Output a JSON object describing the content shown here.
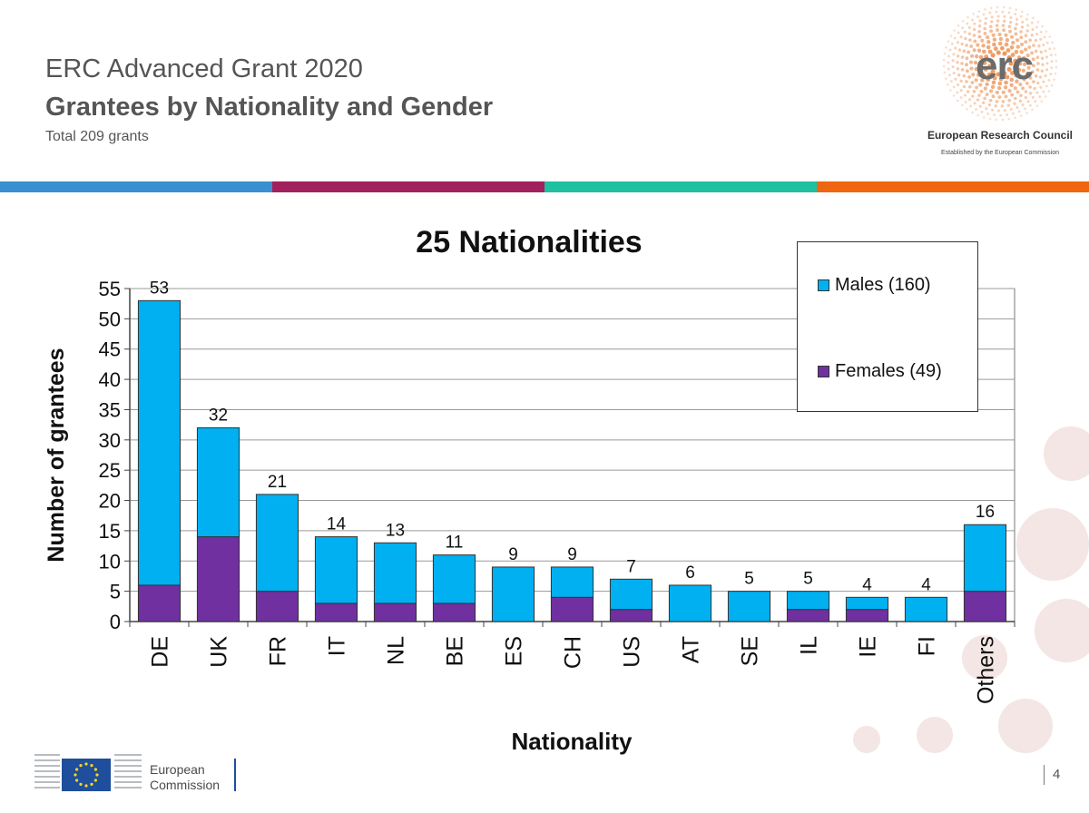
{
  "header": {
    "title": "ERC Advanced Grant 2020",
    "subtitle": "Grantees by Nationality and Gender",
    "note": "Total 209 grants"
  },
  "erc_logo": {
    "word": "erc",
    "name": "European Research Council",
    "tagline": "Established by the European Commission"
  },
  "stripe_colors": [
    "#3a8fd0",
    "#a3205e",
    "#1ec0a0",
    "#f0650f"
  ],
  "chart_data": {
    "type": "bar",
    "stacked": true,
    "title": "25 Nationalities",
    "xlabel": "Nationality",
    "ylabel": "Number of grantees",
    "ylim": [
      0,
      55
    ],
    "yticks": [
      0,
      5,
      10,
      15,
      20,
      25,
      30,
      35,
      40,
      45,
      50,
      55
    ],
    "grid": true,
    "legend_position": "top-right",
    "categories": [
      "DE",
      "UK",
      "FR",
      "IT",
      "NL",
      "BE",
      "ES",
      "CH",
      "US",
      "AT",
      "SE",
      "IL",
      "IE",
      "FI",
      "Others"
    ],
    "totals": [
      53,
      32,
      21,
      14,
      13,
      11,
      9,
      9,
      7,
      6,
      5,
      5,
      4,
      4,
      16
    ],
    "series": [
      {
        "name": "Females (49)",
        "color": "#7030a0",
        "values": [
          6,
          14,
          5,
          3,
          3,
          3,
          0,
          4,
          2,
          0,
          0,
          2,
          2,
          0,
          5
        ]
      },
      {
        "name": "Males (160)",
        "color": "#00b0f0",
        "values": [
          47,
          18,
          16,
          11,
          10,
          8,
          9,
          5,
          5,
          6,
          5,
          3,
          2,
          4,
          11
        ]
      }
    ]
  },
  "footer": {
    "ec_line1": "European",
    "ec_line2": "Commission",
    "page_number": "4"
  }
}
